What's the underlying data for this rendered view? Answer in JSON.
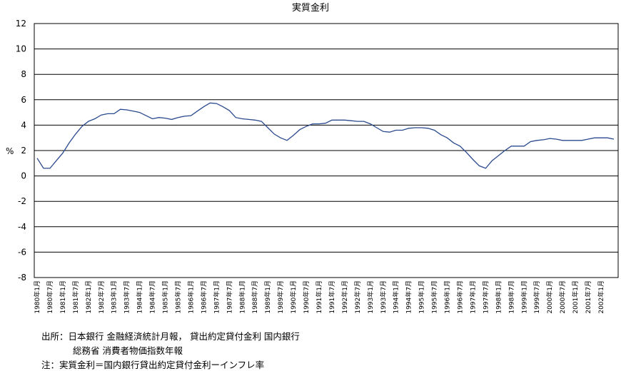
{
  "chart_data": {
    "type": "line",
    "title": "実質金利",
    "ylabel": "%",
    "xlabel": "",
    "ylim": [
      -8,
      12
    ],
    "y_ticks": [
      12,
      10,
      8,
      6,
      4,
      2,
      0,
      -2,
      -4,
      -6,
      -8
    ],
    "grid": true,
    "legend": "none",
    "line_color": "#2a4a8e",
    "x_tick_labels": [
      "1980年1月",
      "1980年7月",
      "1981年1月",
      "1981年7月",
      "1982年1月",
      "1982年7月",
      "1983年1月",
      "1983年7月",
      "1984年1月",
      "1984年7月",
      "1985年1月",
      "1985年7月",
      "1986年1月",
      "1986年7月",
      "1987年1月",
      "1987年7月",
      "1988年1月",
      "1988年7月",
      "1989年1月",
      "1989年7月",
      "1990年1月",
      "1990年7月",
      "1991年1月",
      "1991年7月",
      "1992年1月",
      "1992年7月",
      "1993年1月",
      "1993年7月",
      "1994年1月",
      "1994年7月",
      "1995年1月",
      "1995年7月",
      "1996年1月",
      "1996年7月",
      "1997年1月",
      "1997年7月",
      "1998年1月",
      "1998年7月",
      "1999年1月",
      "1999年7月",
      "2000年1月",
      "2000年7月",
      "2001年1月",
      "2001年7月",
      "2002年1月"
    ],
    "x": [
      "1980年1月",
      "1980年4月",
      "1980年7月",
      "1980年10月",
      "1981年1月",
      "1981年4月",
      "1981年7月",
      "1981年10月",
      "1982年1月",
      "1982年4月",
      "1982年7月",
      "1982年10月",
      "1983年1月",
      "1983年4月",
      "1983年7月",
      "1983年10月",
      "1984年1月",
      "1984年4月",
      "1984年7月",
      "1984年10月",
      "1985年1月",
      "1985年4月",
      "1985年7月",
      "1985年10月",
      "1986年1月",
      "1986年4月",
      "1986年7月",
      "1986年10月",
      "1987年1月",
      "1987年4月",
      "1987年7月",
      "1987年10月",
      "1988年1月",
      "1988年4月",
      "1988年7月",
      "1988年10月",
      "1989年1月",
      "1989年4月",
      "1989年7月",
      "1989年10月",
      "1990年1月",
      "1990年4月",
      "1990年7月",
      "1990年10月",
      "1991年1月",
      "1991年4月",
      "1991年7月",
      "1991年10月",
      "1992年1月",
      "1992年4月",
      "1992年7月",
      "1992年10月",
      "1993年1月",
      "1993年4月",
      "1993年7月",
      "1993年10月",
      "1994年1月",
      "1994年4月",
      "1994年7月",
      "1994年10月",
      "1995年1月",
      "1995年4月",
      "1995年7月",
      "1995年10月",
      "1996年1月",
      "1996年4月",
      "1996年7月",
      "1996年10月",
      "1997年1月",
      "1997年4月",
      "1997年7月",
      "1997年10月",
      "1998年1月",
      "1998年4月",
      "1998年7月",
      "1998年10月",
      "1999年1月",
      "1999年4月",
      "1999年7月",
      "1999年10月",
      "2000年1月",
      "2000年4月",
      "2000年7月",
      "2000年10月",
      "2001年1月",
      "2001年4月",
      "2001年7月",
      "2001年10月",
      "2002年1月",
      "2002年4月",
      "2002年7月"
    ],
    "series": [
      {
        "values": [
          1.4,
          0.6,
          0.6,
          1.2,
          1.8,
          2.6,
          3.3,
          3.9,
          4.3,
          4.5,
          4.8,
          4.9,
          4.9,
          5.25,
          5.2,
          5.1,
          5.0,
          4.75,
          4.5,
          4.6,
          4.55,
          4.45,
          4.6,
          4.7,
          4.75,
          5.1,
          5.45,
          5.75,
          5.7,
          5.45,
          5.15,
          4.6,
          4.5,
          4.45,
          4.4,
          4.3,
          3.8,
          3.3,
          3.0,
          2.8,
          3.2,
          3.65,
          3.9,
          4.1,
          4.1,
          4.15,
          4.4,
          4.4,
          4.4,
          4.35,
          4.3,
          4.3,
          4.1,
          3.8,
          3.5,
          3.45,
          3.6,
          3.6,
          3.75,
          3.8,
          3.8,
          3.75,
          3.6,
          3.25,
          3.0,
          2.6,
          2.35,
          1.85,
          1.3,
          0.8,
          0.6,
          1.2,
          1.6,
          2.0,
          2.35,
          2.35,
          2.35,
          2.7,
          2.8,
          2.85,
          2.95,
          2.9,
          2.8,
          2.8,
          2.8,
          2.8,
          2.9,
          3.0,
          3.0,
          3.0,
          2.9
        ]
      }
    ]
  },
  "notes": {
    "line1": "出所：日本銀行 金融経済統計月報，  貸出約定貸付金利 国内銀行",
    "line2": "総務省 消費者物価指数年報",
    "line3": "注：実質金利＝国内銀行貸出約定貸付金利ーインフレ率"
  }
}
